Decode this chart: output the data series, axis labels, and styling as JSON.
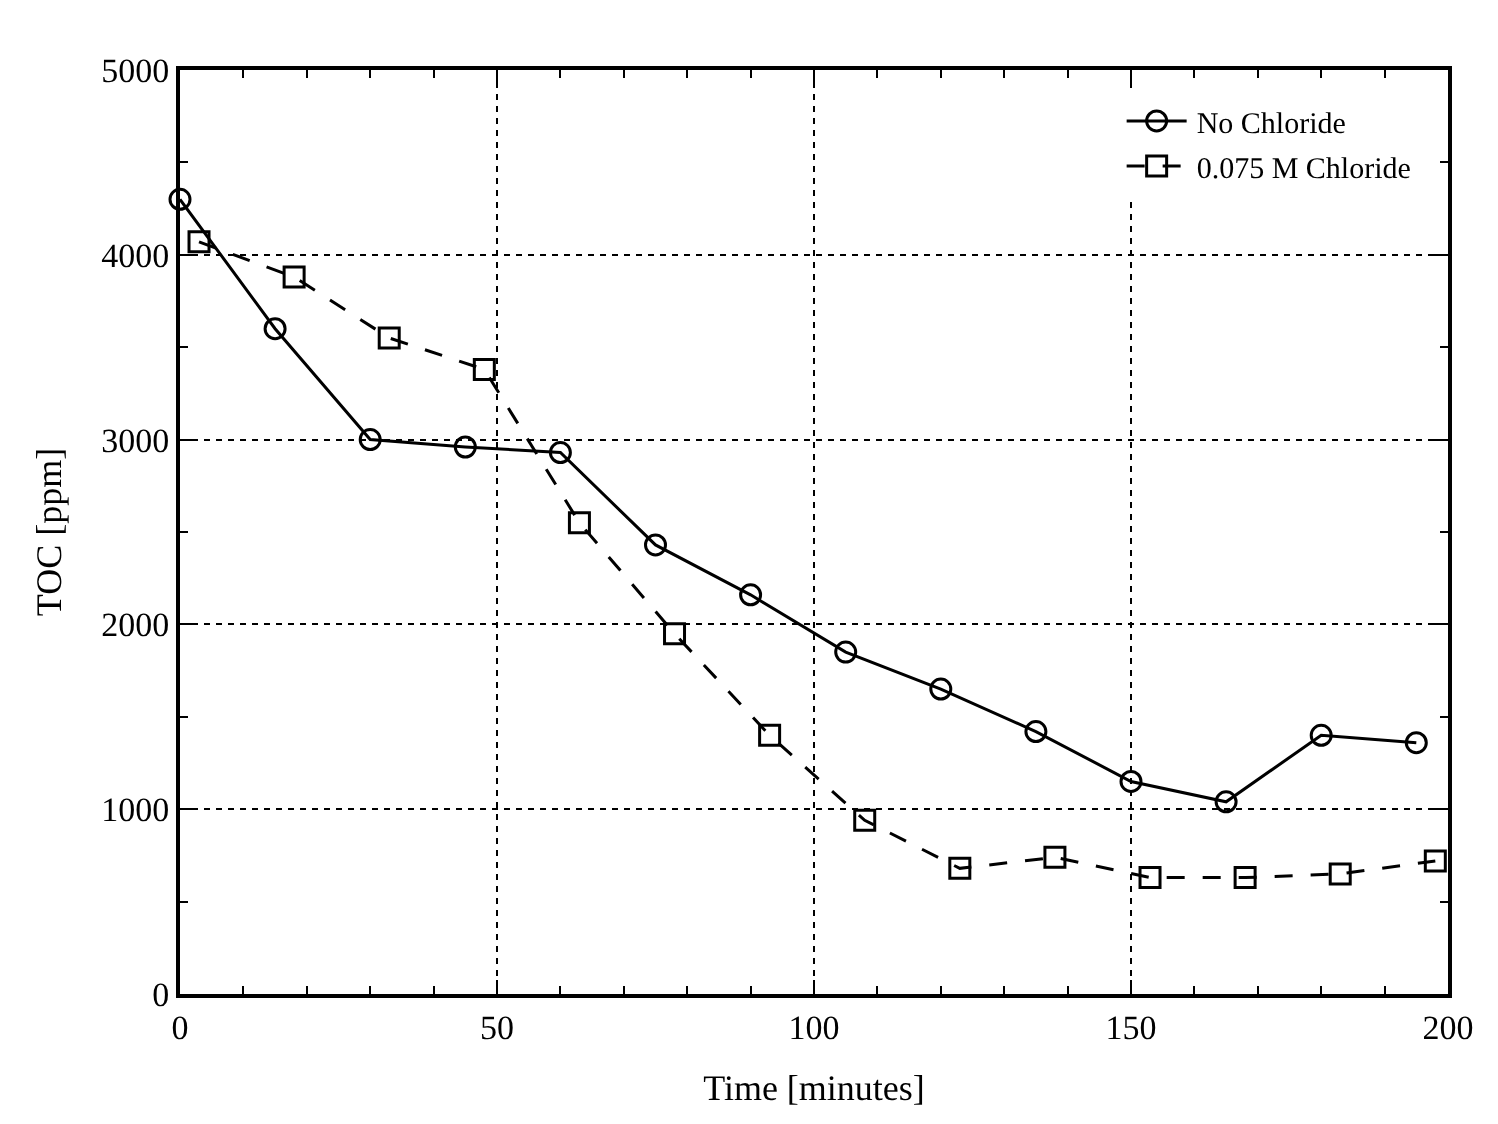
{
  "chart_data": {
    "type": "line",
    "xlabel": "Time [minutes]",
    "ylabel": "TOC [ppm]",
    "xlim": [
      0,
      200
    ],
    "xticks": [
      0,
      50,
      100,
      150,
      200
    ],
    "ylim": [
      0,
      5000
    ],
    "yticks": [
      0,
      1000,
      2000,
      3000,
      4000,
      5000
    ],
    "grid": true,
    "legend": "top right",
    "series": [
      {
        "name": "No Chloride",
        "color": "#000000",
        "marker": "circle",
        "line_style": "solid",
        "x": [
          0,
          15,
          30,
          45,
          60,
          75,
          90,
          105,
          120,
          135,
          150,
          165,
          180,
          195
        ],
        "values": [
          4300,
          3600,
          3000,
          2960,
          2930,
          2430,
          2160,
          1850,
          1650,
          1420,
          1150,
          1040,
          1400,
          1360
        ]
      },
      {
        "name": "0.075 M Chloride",
        "color": "#000000",
        "marker": "square",
        "line_style": "dashed",
        "x": [
          3,
          18,
          33,
          48,
          63,
          78,
          93,
          108,
          123,
          138,
          153,
          168,
          183,
          198
        ],
        "values": [
          4070,
          3880,
          3550,
          3380,
          2550,
          1950,
          1400,
          940,
          680,
          740,
          630,
          630,
          650,
          720
        ]
      }
    ]
  }
}
